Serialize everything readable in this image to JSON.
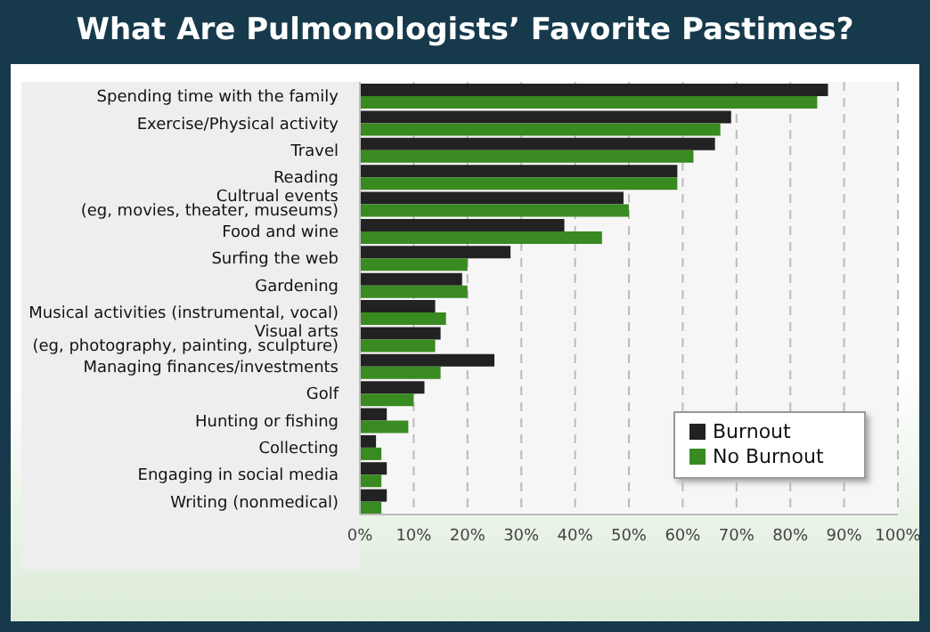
{
  "chart_data": {
    "type": "bar",
    "orientation": "horizontal",
    "title": "What Are Pulmonologists’ Favorite Pastimes?",
    "categories": [
      "Spending time with the family",
      "Exercise/Physical activity",
      "Travel",
      "Reading",
      "Cultrual events\n(eg, movies, theater, museums)",
      "Food and wine",
      "Surfing the web",
      "Gardening",
      "Musical activities (instrumental, vocal)",
      "Visual arts\n(eg, photography, painting, sculpture)",
      "Managing finances/investments",
      "Golf",
      "Hunting or fishing",
      "Collecting",
      "Engaging in social media",
      "Writing (nonmedical)"
    ],
    "series": [
      {
        "name": "Burnout",
        "color": "#222222",
        "values": [
          87,
          69,
          66,
          59,
          49,
          38,
          28,
          19,
          14,
          15,
          25,
          12,
          5,
          3,
          5,
          5
        ]
      },
      {
        "name": "No Burnout",
        "color": "#3a8a22",
        "values": [
          85,
          67,
          62,
          59,
          50,
          45,
          20,
          20,
          16,
          14,
          15,
          10,
          9,
          4,
          4,
          4
        ]
      }
    ],
    "xlim": [
      0,
      100
    ],
    "xticks": [
      {
        "value": 0,
        "label": "0%"
      },
      {
        "value": 10,
        "label": "10%"
      },
      {
        "value": 20,
        "label": "20%"
      },
      {
        "value": 30,
        "label": "30%"
      },
      {
        "value": 40,
        "label": "40%"
      },
      {
        "value": 50,
        "label": "50%"
      },
      {
        "value": 60,
        "label": "60%"
      },
      {
        "value": 70,
        "label": "70%"
      },
      {
        "value": 80,
        "label": "80%"
      },
      {
        "value": 90,
        "label": "90%"
      },
      {
        "value": 100,
        "label": "100%"
      }
    ],
    "grid": "x",
    "legend": "right"
  }
}
